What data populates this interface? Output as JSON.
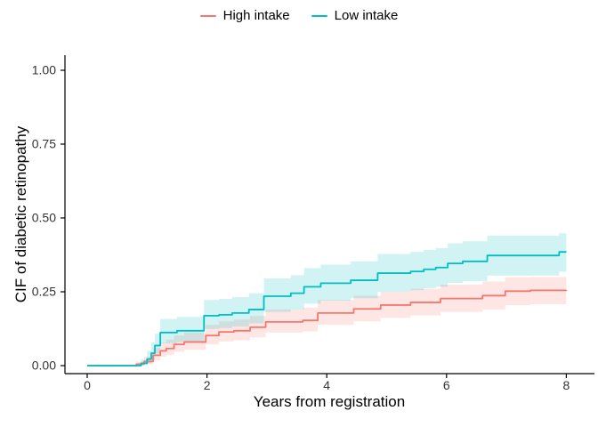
{
  "page": {
    "background": "#ffffff",
    "text_color": "#000000",
    "tick_label_color": "#333333",
    "axis_color": "#000000"
  },
  "chart_data": {
    "type": "line",
    "subtype": "step-cumulative-incidence-with-confidence-bands",
    "title": "",
    "xlabel": "Years from registration",
    "ylabel": "CIF of diabetic retinopathy",
    "xlim": [
      0,
      8
    ],
    "ylim": [
      0,
      1
    ],
    "x_ticks": [
      {
        "value": 0,
        "label": "0"
      },
      {
        "value": 2,
        "label": "2"
      },
      {
        "value": 4,
        "label": "4"
      },
      {
        "value": 6,
        "label": "6"
      },
      {
        "value": 8,
        "label": "8"
      }
    ],
    "y_ticks": [
      {
        "value": 0.0,
        "label": "0.00"
      },
      {
        "value": 0.25,
        "label": "0.25"
      },
      {
        "value": 0.5,
        "label": "0.50"
      },
      {
        "value": 0.75,
        "label": "0.75"
      },
      {
        "value": 1.0,
        "label": "1.00"
      }
    ],
    "grid": false,
    "legend_position": "top-center",
    "series": [
      {
        "name": "High intake",
        "color": "#F8766D",
        "band_color": "rgba(248,118,109,0.18)",
        "point_format": [
          "year",
          "cif",
          "ci_lower",
          "ci_upper"
        ],
        "points": [
          [
            0.0,
            0.0,
            0.0,
            0.0
          ],
          [
            0.7,
            0.0,
            0.0,
            0.004
          ],
          [
            0.82,
            0.005,
            0.001,
            0.014
          ],
          [
            0.95,
            0.014,
            0.005,
            0.03
          ],
          [
            1.1,
            0.035,
            0.018,
            0.06
          ],
          [
            1.22,
            0.05,
            0.03,
            0.078
          ],
          [
            1.32,
            0.058,
            0.036,
            0.088
          ],
          [
            1.45,
            0.072,
            0.047,
            0.102
          ],
          [
            1.62,
            0.08,
            0.054,
            0.112
          ],
          [
            1.98,
            0.102,
            0.072,
            0.138
          ],
          [
            2.2,
            0.114,
            0.082,
            0.15
          ],
          [
            2.45,
            0.118,
            0.086,
            0.156
          ],
          [
            2.72,
            0.13,
            0.096,
            0.168
          ],
          [
            2.98,
            0.148,
            0.112,
            0.19
          ],
          [
            3.6,
            0.153,
            0.116,
            0.196
          ],
          [
            3.85,
            0.178,
            0.138,
            0.222
          ],
          [
            4.45,
            0.192,
            0.15,
            0.237
          ],
          [
            4.9,
            0.205,
            0.162,
            0.25
          ],
          [
            5.4,
            0.214,
            0.17,
            0.26
          ],
          [
            5.9,
            0.227,
            0.182,
            0.274
          ],
          [
            6.6,
            0.237,
            0.19,
            0.285
          ],
          [
            6.98,
            0.252,
            0.205,
            0.299
          ],
          [
            7.4,
            0.255,
            0.208,
            0.3
          ],
          [
            8.0,
            0.256,
            0.21,
            0.3
          ]
        ]
      },
      {
        "name": "Low intake",
        "color": "#00BFC4",
        "band_color": "rgba(0,191,196,0.18)",
        "point_format": [
          "year",
          "cif",
          "ci_lower",
          "ci_upper"
        ],
        "points": [
          [
            0.0,
            0.0,
            0.0,
            0.0
          ],
          [
            0.78,
            0.0,
            0.0,
            0.004
          ],
          [
            0.9,
            0.008,
            0.002,
            0.022
          ],
          [
            1.0,
            0.022,
            0.008,
            0.05
          ],
          [
            1.07,
            0.042,
            0.02,
            0.078
          ],
          [
            1.13,
            0.068,
            0.04,
            0.108
          ],
          [
            1.22,
            0.112,
            0.075,
            0.158
          ],
          [
            1.5,
            0.118,
            0.08,
            0.165
          ],
          [
            1.95,
            0.169,
            0.124,
            0.222
          ],
          [
            2.2,
            0.172,
            0.127,
            0.226
          ],
          [
            2.42,
            0.178,
            0.132,
            0.232
          ],
          [
            2.7,
            0.19,
            0.143,
            0.245
          ],
          [
            2.95,
            0.235,
            0.182,
            0.295
          ],
          [
            3.4,
            0.245,
            0.19,
            0.306
          ],
          [
            3.62,
            0.267,
            0.21,
            0.33
          ],
          [
            3.9,
            0.279,
            0.22,
            0.342
          ],
          [
            4.4,
            0.289,
            0.228,
            0.353
          ],
          [
            4.85,
            0.313,
            0.25,
            0.378
          ],
          [
            5.4,
            0.319,
            0.255,
            0.385
          ],
          [
            5.62,
            0.326,
            0.262,
            0.392
          ],
          [
            5.82,
            0.332,
            0.267,
            0.398
          ],
          [
            6.02,
            0.346,
            0.28,
            0.414
          ],
          [
            6.27,
            0.353,
            0.286,
            0.421
          ],
          [
            6.68,
            0.373,
            0.305,
            0.44
          ],
          [
            7.88,
            0.385,
            0.318,
            0.448
          ],
          [
            8.0,
            0.385,
            0.318,
            0.448
          ]
        ]
      }
    ]
  }
}
